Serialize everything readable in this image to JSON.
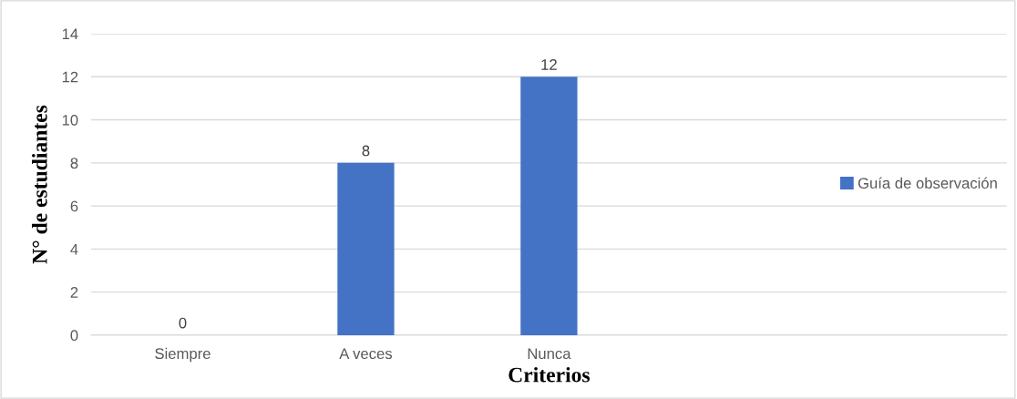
{
  "chart_data": {
    "type": "bar",
    "xlabel": "Criterios",
    "ylabel": "N° de estudiantes",
    "categories": [
      "Siempre",
      "A veces",
      "Nunca",
      null,
      null
    ],
    "series": [
      {
        "name": "Guía de observación",
        "color": "#4472c4",
        "values": [
          0,
          8,
          12,
          null,
          null
        ]
      }
    ],
    "ylim": [
      0,
      14
    ],
    "yticks": [
      0,
      2,
      4,
      6,
      8,
      10,
      12,
      14
    ],
    "grid": "y",
    "legend": "right",
    "data_labels": true
  }
}
